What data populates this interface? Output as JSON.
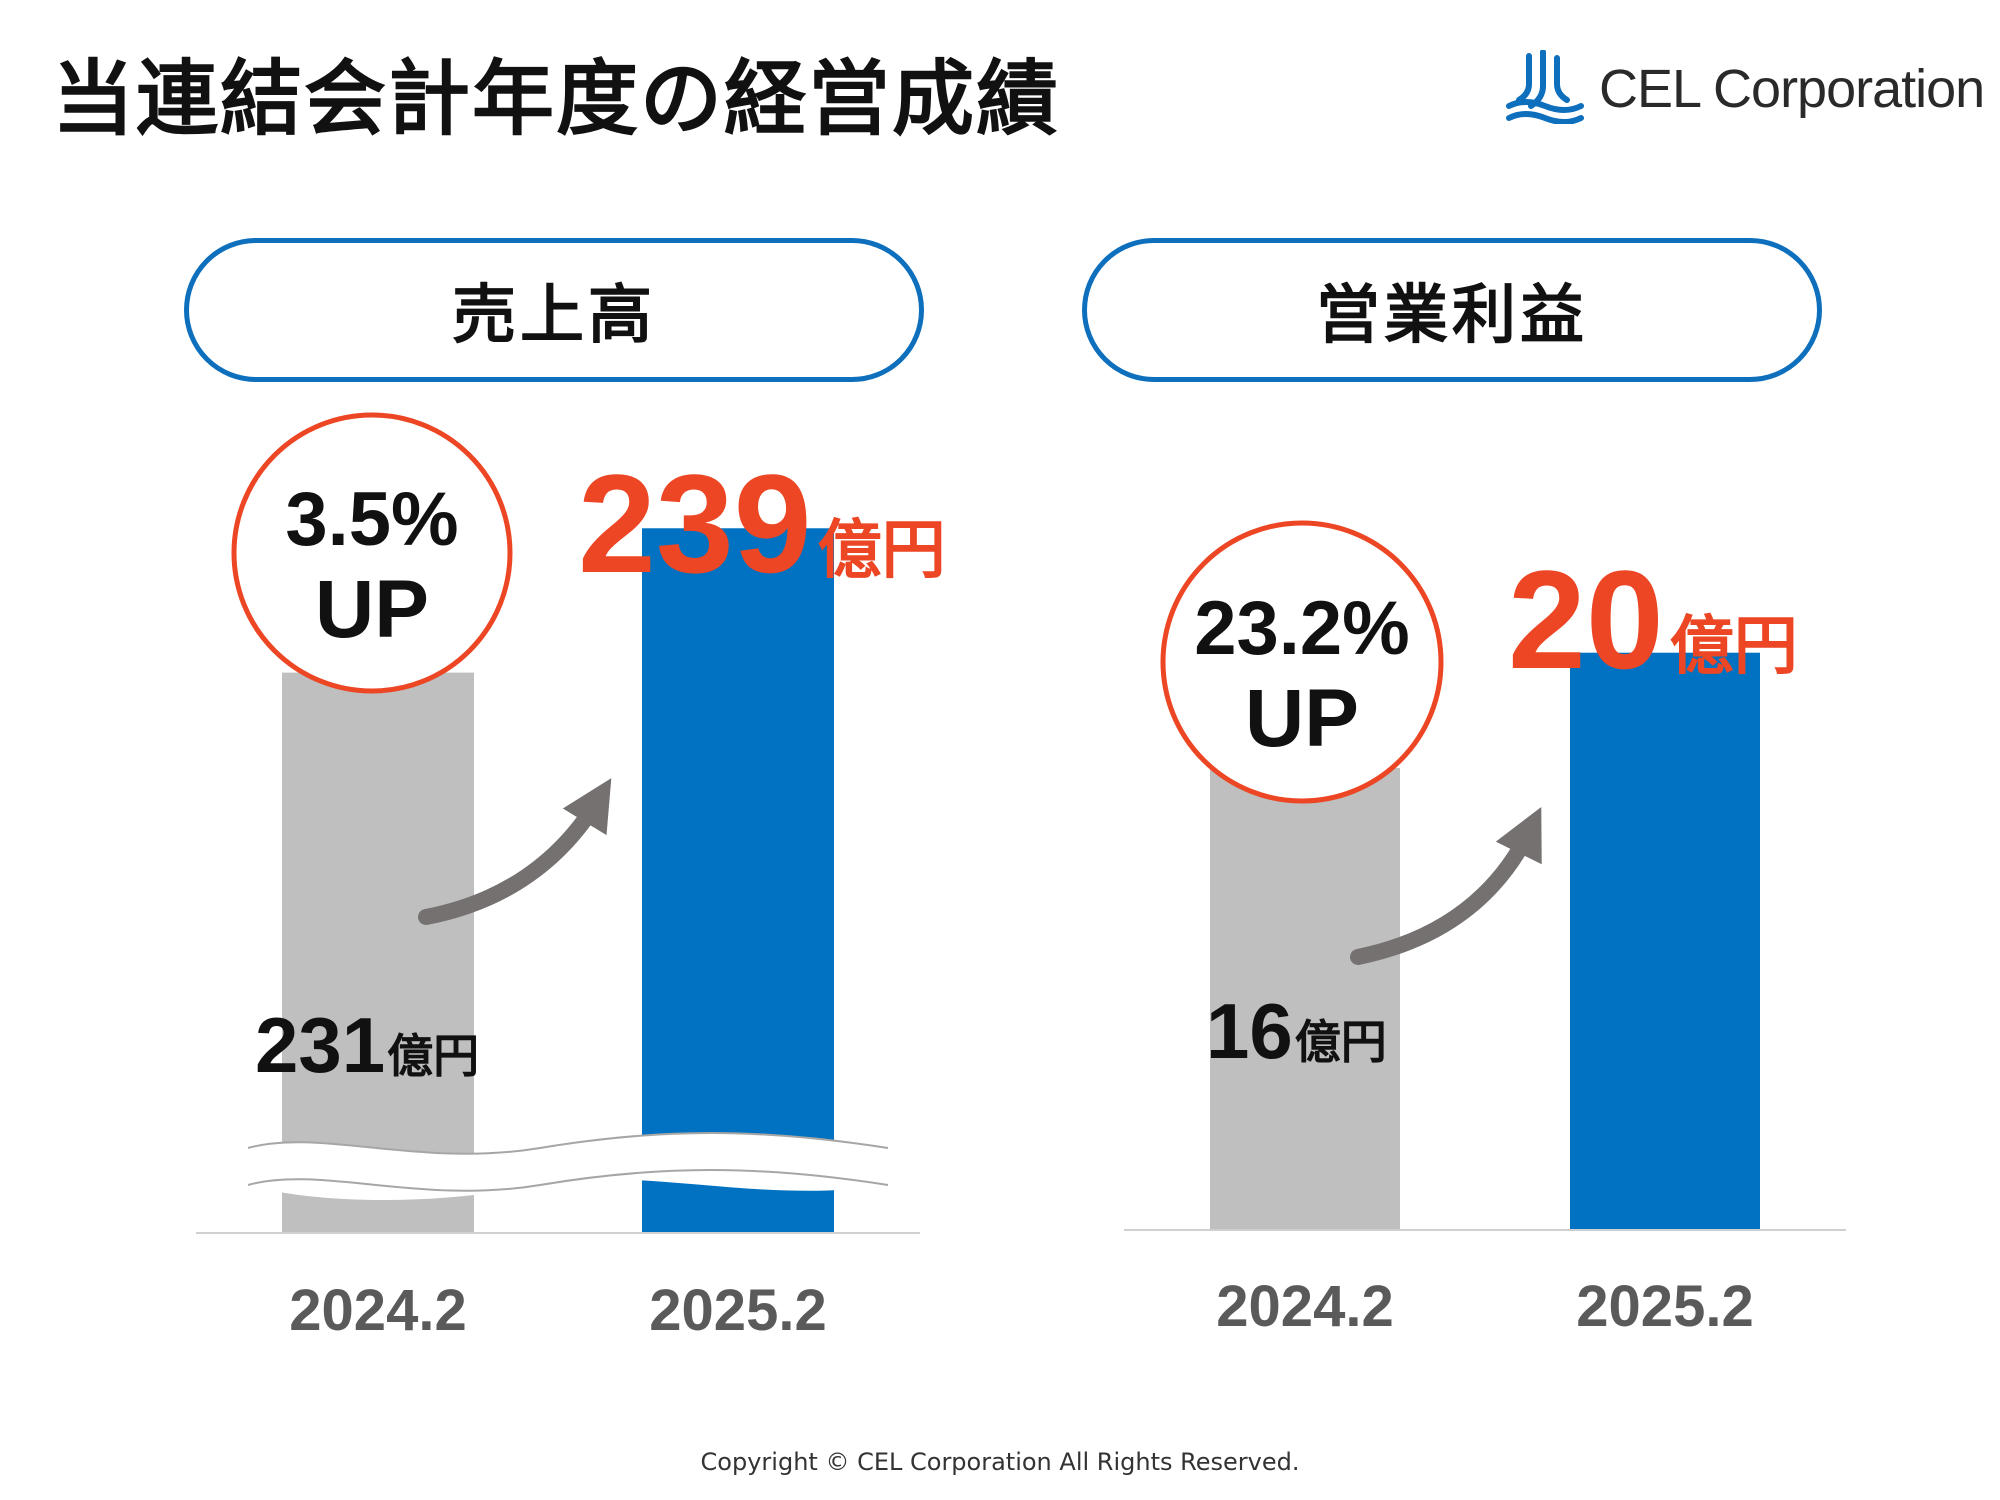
{
  "title": "当連結会計年度の経営成績",
  "logo": {
    "text": "CEL Corporation",
    "icon": "cel-wave-logo-icon",
    "color": "#0e6fbd"
  },
  "footer": {
    "copyright": "Copyright © CEL Corporation All Rights Reserved."
  },
  "colors": {
    "accent": "#ec4624",
    "blue": "#0072c1",
    "gray": "#bfbfbf",
    "pill_border": "#0e6fbd",
    "arrow": "#767171"
  },
  "chart_data": [
    {
      "type": "bar",
      "title": "売上高",
      "categories": [
        "2024.2",
        "2025.2"
      ],
      "values": [
        231,
        239
      ],
      "unit": "億円",
      "change_badge": [
        "3.5%",
        "UP"
      ],
      "value_labels": [
        "231",
        "239"
      ],
      "axis_break": true,
      "ylim": [
        200,
        245
      ]
    },
    {
      "type": "bar",
      "title": "営業利益",
      "categories": [
        "2024.2",
        "2025.2"
      ],
      "values": [
        16,
        20
      ],
      "unit": "億円",
      "change_badge": [
        "23.2%",
        "UP"
      ],
      "value_labels": [
        "16",
        "20"
      ],
      "axis_break": false,
      "ylim": [
        0,
        27
      ]
    }
  ]
}
